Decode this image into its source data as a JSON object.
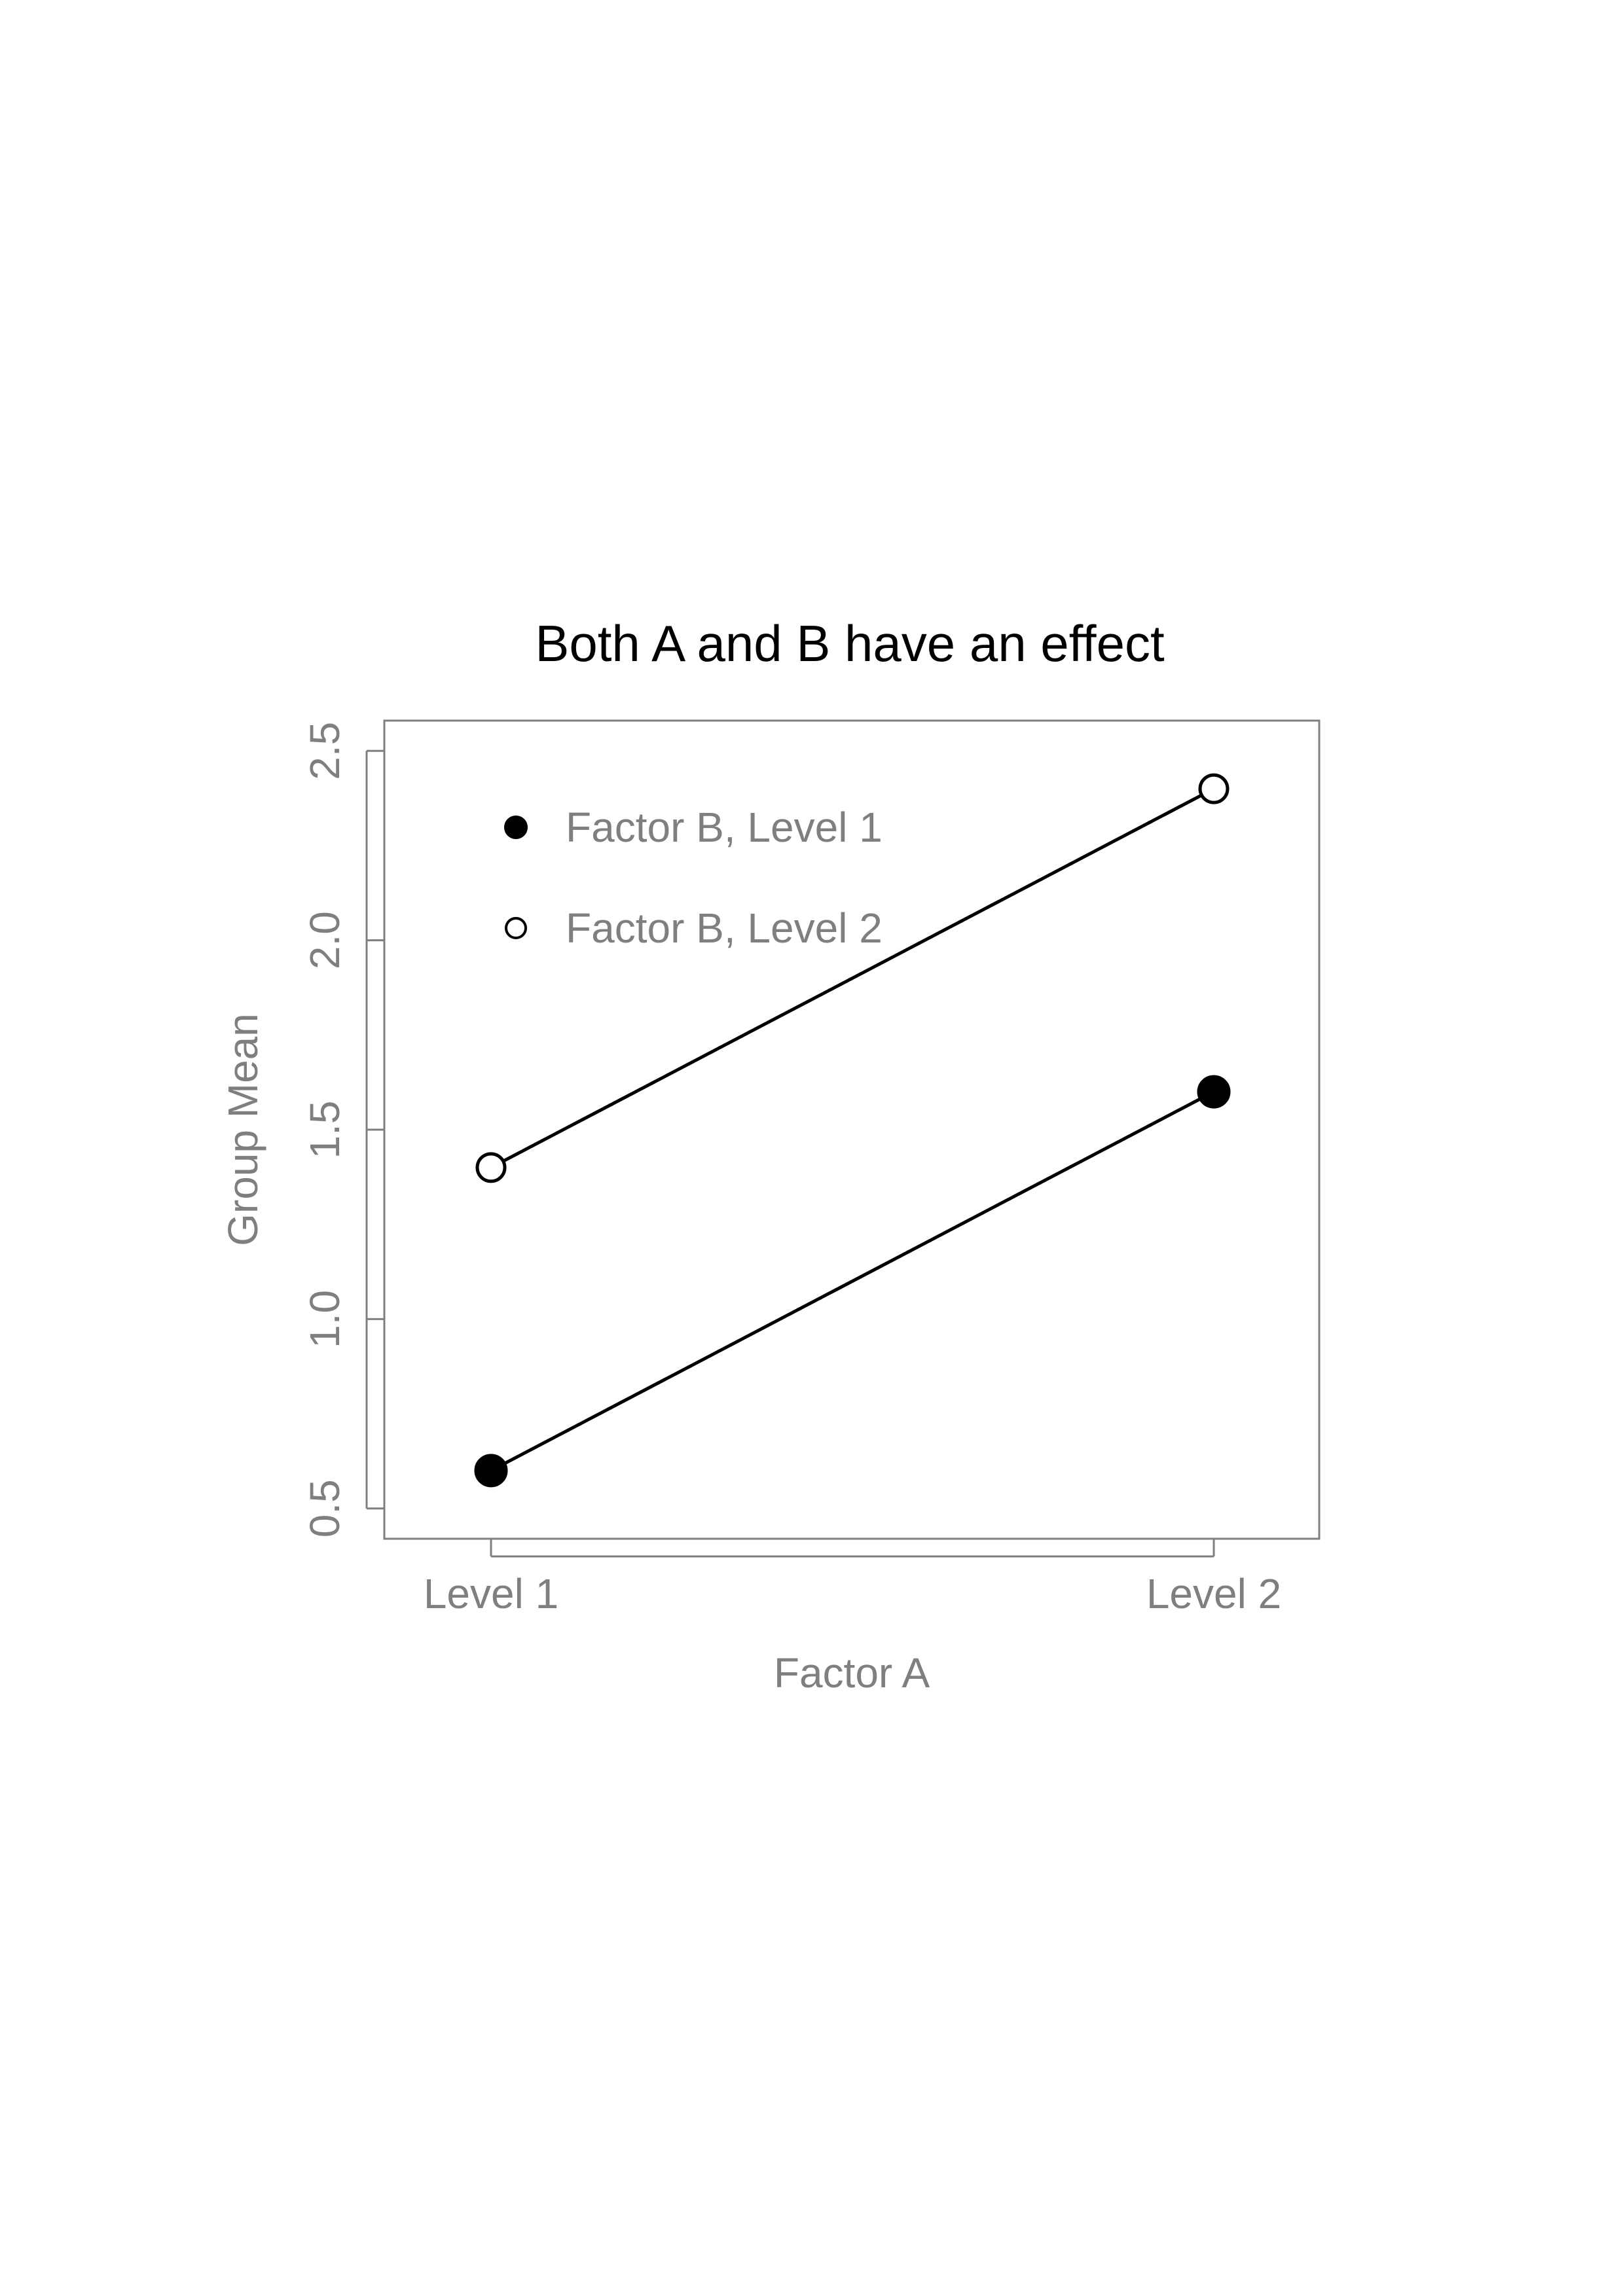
{
  "chart_data": {
    "type": "line",
    "title": "Both A and B have an effect",
    "xlabel": "Factor A",
    "ylabel": "Group Mean",
    "categories": [
      "Level 1",
      "Level 2"
    ],
    "yticks": [
      "0.5",
      "1.0",
      "1.5",
      "2.0",
      "2.5"
    ],
    "ylim": [
      0.42,
      2.58
    ],
    "series": [
      {
        "name": "Factor B, Level 1",
        "values": [
          0.6,
          1.6
        ],
        "marker": "filled"
      },
      {
        "name": "Factor B, Level 2",
        "values": [
          1.4,
          2.4
        ],
        "marker": "open"
      }
    ],
    "legend_position": "top-left",
    "grid": false,
    "colors": {
      "line": "#000000",
      "axis": "#7f7f7f",
      "text": "#7f7f7f",
      "title": "#000000"
    }
  }
}
